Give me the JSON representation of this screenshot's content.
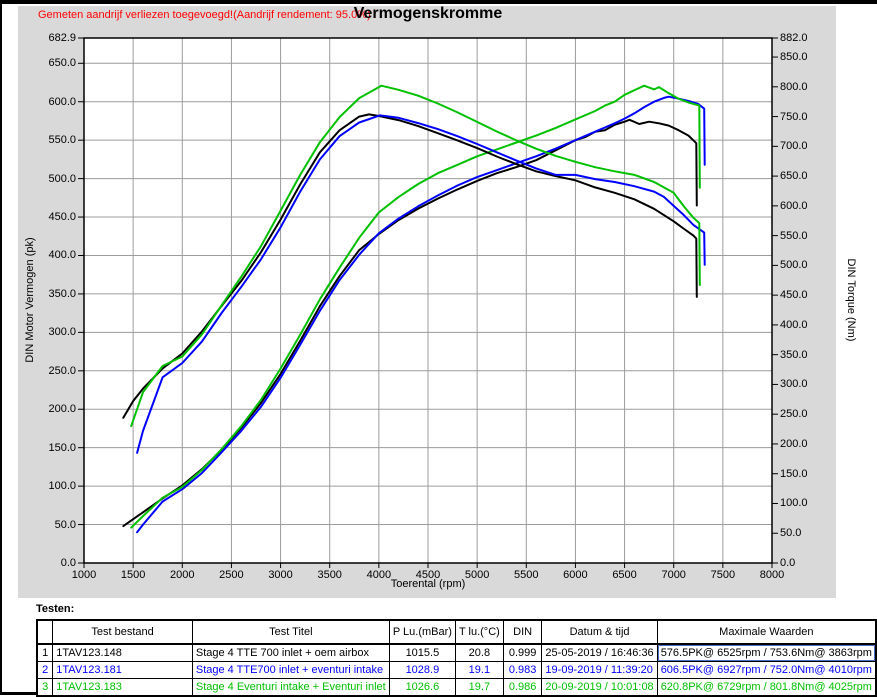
{
  "header": {
    "note": "Gemeten aandrijf verliezen toegevoegd!(Aandrijf rendement: 95.0%)",
    "note_color": "#ff0000",
    "title": "Vermogenskromme"
  },
  "chart_data": {
    "type": "line",
    "title": "Vermogenskromme",
    "xlabel": "Toerental (rpm)",
    "ylabel_left": "DIN Motor Vermogen (pk)",
    "ylabel_right": "DIN Torque (Nm)",
    "x_range": [
      1000,
      8000
    ],
    "x_ticks": [
      1000,
      1500,
      2000,
      2500,
      3000,
      3500,
      4000,
      4500,
      5000,
      5500,
      6000,
      6500,
      7000,
      7500,
      8000
    ],
    "y_left_range": [
      0,
      682.9
    ],
    "y_left_ticks": [
      0,
      50,
      100,
      150,
      200,
      250,
      300,
      350,
      400,
      450,
      500,
      550,
      600,
      650,
      682.9
    ],
    "y_right_range": [
      0,
      882.0
    ],
    "y_right_ticks": [
      0,
      50,
      100,
      150,
      200,
      250,
      300,
      350,
      400,
      450,
      500,
      550,
      600,
      650,
      700,
      750,
      800,
      850,
      882
    ],
    "grid": true,
    "legend": "none",
    "colors": {
      "test1": "#000000",
      "test2": "#0000ff",
      "test3": "#00c000",
      "grid": "#9c9c9c",
      "plot_bg": "#ffffff",
      "panel_bg": "#d9d9d9"
    },
    "series": [
      {
        "name": "Test 1 vermogen (pk)",
        "axis": "left",
        "color": "#000000",
        "points": [
          [
            1400,
            48
          ],
          [
            1500,
            57
          ],
          [
            1600,
            66
          ],
          [
            1800,
            84
          ],
          [
            2000,
            101
          ],
          [
            2200,
            122
          ],
          [
            2400,
            147
          ],
          [
            2600,
            176
          ],
          [
            2800,
            208
          ],
          [
            3000,
            246
          ],
          [
            3200,
            289
          ],
          [
            3400,
            334
          ],
          [
            3600,
            373
          ],
          [
            3800,
            407
          ],
          [
            4000,
            428
          ],
          [
            4200,
            446
          ],
          [
            4400,
            461
          ],
          [
            4600,
            474
          ],
          [
            4800,
            486
          ],
          [
            5000,
            497
          ],
          [
            5200,
            507
          ],
          [
            5400,
            515
          ],
          [
            5600,
            524
          ],
          [
            5800,
            537
          ],
          [
            6000,
            550
          ],
          [
            6100,
            554
          ],
          [
            6200,
            561
          ],
          [
            6300,
            563
          ],
          [
            6400,
            570
          ],
          [
            6500,
            574
          ],
          [
            6550,
            576.5
          ],
          [
            6650,
            571
          ],
          [
            6750,
            574
          ],
          [
            6850,
            572
          ],
          [
            6950,
            569
          ],
          [
            7050,
            563
          ],
          [
            7150,
            556
          ],
          [
            7230,
            546
          ],
          [
            7235,
            465
          ]
        ]
      },
      {
        "name": "Test 2 vermogen (pk)",
        "axis": "left",
        "color": "#0000ff",
        "points": [
          [
            1540,
            40
          ],
          [
            1600,
            50
          ],
          [
            1800,
            80
          ],
          [
            2000,
            96
          ],
          [
            2200,
            117
          ],
          [
            2400,
            144
          ],
          [
            2600,
            172
          ],
          [
            2800,
            203
          ],
          [
            3000,
            241
          ],
          [
            3200,
            284
          ],
          [
            3400,
            328
          ],
          [
            3600,
            368
          ],
          [
            3800,
            401
          ],
          [
            4000,
            429
          ],
          [
            4200,
            448
          ],
          [
            4400,
            464
          ],
          [
            4600,
            478
          ],
          [
            4800,
            491
          ],
          [
            5000,
            502
          ],
          [
            5200,
            511
          ],
          [
            5400,
            520
          ],
          [
            5600,
            529
          ],
          [
            5800,
            539
          ],
          [
            6000,
            550
          ],
          [
            6200,
            561
          ],
          [
            6400,
            572
          ],
          [
            6500,
            578
          ],
          [
            6600,
            585
          ],
          [
            6700,
            593
          ],
          [
            6800,
            600
          ],
          [
            6900,
            605
          ],
          [
            6950,
            606.5
          ],
          [
            7050,
            604
          ],
          [
            7150,
            601
          ],
          [
            7250,
            597
          ],
          [
            7310,
            591
          ],
          [
            7315,
            518
          ]
        ]
      },
      {
        "name": "Test 3 vermogen (pk)",
        "axis": "left",
        "color": "#00c000",
        "points": [
          [
            1480,
            46
          ],
          [
            1600,
            61
          ],
          [
            1800,
            85
          ],
          [
            2000,
            99
          ],
          [
            2200,
            121
          ],
          [
            2400,
            148
          ],
          [
            2600,
            178
          ],
          [
            2800,
            212
          ],
          [
            3000,
            253
          ],
          [
            3200,
            297
          ],
          [
            3400,
            343
          ],
          [
            3600,
            384
          ],
          [
            3800,
            423
          ],
          [
            4000,
            456
          ],
          [
            4200,
            476
          ],
          [
            4400,
            493
          ],
          [
            4600,
            507
          ],
          [
            4800,
            518
          ],
          [
            5000,
            529
          ],
          [
            5200,
            538
          ],
          [
            5400,
            547
          ],
          [
            5600,
            556
          ],
          [
            5800,
            566
          ],
          [
            6000,
            577
          ],
          [
            6200,
            588
          ],
          [
            6300,
            595
          ],
          [
            6400,
            600
          ],
          [
            6500,
            609
          ],
          [
            6600,
            615
          ],
          [
            6700,
            620.8
          ],
          [
            6800,
            616
          ],
          [
            6850,
            619
          ],
          [
            6950,
            611
          ],
          [
            7050,
            604
          ],
          [
            7150,
            599
          ],
          [
            7260,
            595
          ],
          [
            7265,
            488
          ]
        ]
      },
      {
        "name": "Test 1 koppel (Nm)",
        "axis": "right",
        "color": "#000000",
        "points": [
          [
            1400,
            244
          ],
          [
            1500,
            272
          ],
          [
            1600,
            293
          ],
          [
            1800,
            327
          ],
          [
            2000,
            352
          ],
          [
            2200,
            389
          ],
          [
            2400,
            432
          ],
          [
            2600,
            474
          ],
          [
            2800,
            522
          ],
          [
            3000,
            577
          ],
          [
            3200,
            636
          ],
          [
            3400,
            690
          ],
          [
            3600,
            727
          ],
          [
            3800,
            750
          ],
          [
            3900,
            753.6
          ],
          [
            4000,
            751
          ],
          [
            4200,
            744
          ],
          [
            4400,
            734
          ],
          [
            4600,
            722
          ],
          [
            4800,
            710
          ],
          [
            5000,
            697
          ],
          [
            5200,
            683
          ],
          [
            5400,
            670
          ],
          [
            5600,
            658
          ],
          [
            5800,
            650
          ],
          [
            6000,
            643
          ],
          [
            6200,
            631
          ],
          [
            6400,
            622
          ],
          [
            6600,
            611
          ],
          [
            6800,
            595
          ],
          [
            7000,
            574
          ],
          [
            7100,
            562
          ],
          [
            7200,
            550
          ],
          [
            7230,
            545
          ],
          [
            7235,
            447
          ]
        ]
      },
      {
        "name": "Test 2 koppel (Nm)",
        "axis": "right",
        "color": "#0000ff",
        "points": [
          [
            1540,
            185
          ],
          [
            1600,
            222
          ],
          [
            1800,
            312
          ],
          [
            2000,
            336
          ],
          [
            2200,
            372
          ],
          [
            2400,
            420
          ],
          [
            2600,
            464
          ],
          [
            2800,
            510
          ],
          [
            3000,
            564
          ],
          [
            3200,
            624
          ],
          [
            3400,
            678
          ],
          [
            3600,
            717
          ],
          [
            3800,
            740
          ],
          [
            4010,
            752
          ],
          [
            4200,
            748
          ],
          [
            4400,
            739
          ],
          [
            4600,
            729
          ],
          [
            4800,
            717
          ],
          [
            5000,
            704
          ],
          [
            5200,
            690
          ],
          [
            5400,
            676
          ],
          [
            5600,
            663
          ],
          [
            5800,
            652
          ],
          [
            6000,
            652
          ],
          [
            6200,
            645
          ],
          [
            6400,
            640
          ],
          [
            6600,
            633
          ],
          [
            6800,
            624
          ],
          [
            6900,
            615
          ],
          [
            7000,
            600
          ],
          [
            7100,
            585
          ],
          [
            7200,
            568
          ],
          [
            7310,
            555
          ],
          [
            7315,
            501
          ]
        ]
      },
      {
        "name": "Test 3 koppel (Nm)",
        "axis": "right",
        "color": "#00c000",
        "points": [
          [
            1480,
            230
          ],
          [
            1600,
            287
          ],
          [
            1800,
            331
          ],
          [
            2000,
            347
          ],
          [
            2200,
            384
          ],
          [
            2400,
            433
          ],
          [
            2600,
            481
          ],
          [
            2800,
            532
          ],
          [
            3000,
            592
          ],
          [
            3200,
            652
          ],
          [
            3400,
            707
          ],
          [
            3600,
            749
          ],
          [
            3800,
            781
          ],
          [
            4025,
            801.8
          ],
          [
            4200,
            795
          ],
          [
            4400,
            785
          ],
          [
            4600,
            772
          ],
          [
            4800,
            757
          ],
          [
            5000,
            741
          ],
          [
            5200,
            725
          ],
          [
            5400,
            710
          ],
          [
            5600,
            696
          ],
          [
            5800,
            684
          ],
          [
            6000,
            674
          ],
          [
            6200,
            665
          ],
          [
            6400,
            658
          ],
          [
            6600,
            652
          ],
          [
            6800,
            640
          ],
          [
            7000,
            622
          ],
          [
            7100,
            600
          ],
          [
            7200,
            580
          ],
          [
            7260,
            571
          ],
          [
            7265,
            467
          ]
        ]
      }
    ]
  },
  "table": {
    "label": "Testen:",
    "columns": [
      "",
      "Test bestand",
      "Test Titel",
      "P Lu.(mBar)",
      "T lu.(°C)",
      "DIN",
      "Datum & tijd",
      "Maximale Waarden"
    ],
    "rows": [
      {
        "nr": "1",
        "bestand": "1TAV123.148",
        "titel": "Stage 4 TTE 700 inlet + oem airbox",
        "p_lu": "1015.5",
        "t_lu": "20.8",
        "din": "0.999",
        "datum": "25-05-2019 / 16:46:36",
        "max": "576.5PK@ 6525rpm / 753.6Nm@ 3863rpm",
        "color": "#000000",
        "max_selected": true
      },
      {
        "nr": "2",
        "bestand": "1TAV123.181",
        "titel": "Stage 4 TTE700 inlet + eventuri intake",
        "p_lu": "1028.9",
        "t_lu": "19.1",
        "din": "0.983",
        "datum": "19-09-2019 / 11:39:20",
        "max": "606.5PK@ 6927rpm / 752.0Nm@ 4010rpm",
        "color": "#0000ff",
        "max_selected": false
      },
      {
        "nr": "3",
        "bestand": "1TAV123.183",
        "titel": "Stage 4 Eventuri intake + Eventuri inlet",
        "p_lu": "1026.6",
        "t_lu": "19.7",
        "din": "0.986",
        "datum": "20-09-2019 / 10:01:08",
        "max": "620.8PK@ 6729rpm / 801.8Nm@ 4025rpm",
        "color": "#00c000",
        "max_selected": false
      }
    ]
  }
}
